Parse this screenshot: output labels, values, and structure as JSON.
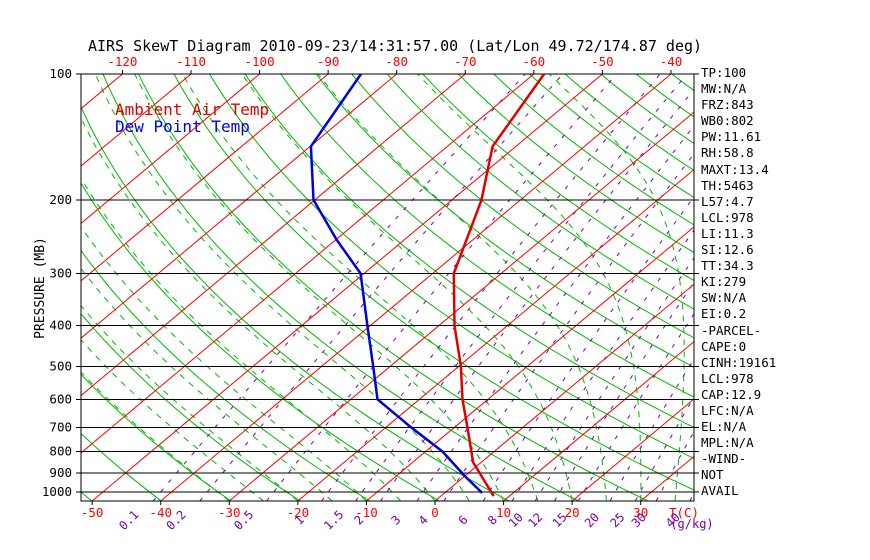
{
  "title": "AIRS SkewT Diagram 2010-09-23/14:31:57.00 (Lat/Lon 49.72/174.87 deg)",
  "legend": {
    "ambient": "Ambient Air Temp",
    "dewpoint": "Dew Point Temp"
  },
  "axes": {
    "pressure_label": "PRESSURE (MB)",
    "temp_unit": "T(C)",
    "mixing_ratio_unit": "(g/kg)"
  },
  "stats": [
    "TP:100",
    "MW:N/A",
    "FRZ:843",
    "WB0:802",
    "PW:11.61",
    "RH:58.8",
    "MAXT:13.4",
    "TH:5463",
    "L57:4.7",
    "LCL:978",
    "LI:11.3",
    "SI:12.6",
    "TT:34.3",
    "KI:279",
    "SW:N/A",
    "EI:0.2",
    "-PARCEL-",
    "CAPE:0",
    "CINH:19161",
    "LCL:978",
    "CAP:12.9",
    "LFC:N/A",
    "EL:N/A",
    "MPL:N/A",
    "-WIND-",
    "NOT",
    "AVAIL"
  ],
  "colors": {
    "background": "#ffffff",
    "black": "#000000",
    "isotherm_red": "#ff0000",
    "adiabat_green": "#00b800",
    "mixing_purple": "#7700aa",
    "ambient_red": "#e10000",
    "dewpoint_blue": "#0000dd"
  },
  "chart_data": {
    "type": "line",
    "title": "AIRS SkewT Diagram 2010-09-23/14:31:57.00 (Lat/Lon 49.72/174.87 deg)",
    "x_axis": {
      "label": "T(C)",
      "bottom_ticks": [
        -50,
        -40,
        -30,
        -20,
        -10,
        0,
        10,
        20,
        30
      ],
      "top_ticks": [
        -120,
        -110,
        -100,
        -90,
        -80,
        -70,
        -60,
        -50,
        -40
      ],
      "skew": "isotherms slant up-right"
    },
    "y_axis": {
      "label": "PRESSURE (MB)",
      "scale": "log",
      "range": [
        100,
        1050
      ],
      "ticks": [
        100,
        200,
        300,
        400,
        500,
        600,
        700,
        800,
        900,
        1000
      ]
    },
    "grid_lines": {
      "isotherms_c": {
        "min": -120,
        "max": 40,
        "step": 10
      },
      "dry_adiabats_k": {
        "min": 220,
        "max": 470,
        "step": 10
      },
      "moist_adiabats_c": {
        "min": -30,
        "max": 40,
        "step": 5
      },
      "mixing_ratio_g_kg": [
        "0.1",
        "0.2",
        "0.5",
        "1",
        "1.5",
        "2",
        "3",
        "4",
        "6",
        "8",
        "10",
        "12",
        "15",
        "20",
        "25",
        "30",
        "40"
      ]
    },
    "series": [
      {
        "name": "Ambient Air Temp",
        "color": "#e10000",
        "points_pressure_mb_temp_c": [
          [
            100,
            -58.5
          ],
          [
            149,
            -53.4
          ],
          [
            200,
            -45.7
          ],
          [
            300,
            -36.9
          ],
          [
            400,
            -27.7
          ],
          [
            500,
            -19.7
          ],
          [
            600,
            -13.7
          ],
          [
            700,
            -8.1
          ],
          [
            848,
            -1.2
          ],
          [
            1022,
            7.7
          ]
        ]
      },
      {
        "name": "Dew Point Temp",
        "color": "#0000dd",
        "points_pressure_mb_temp_c": [
          [
            100,
            -85.2
          ],
          [
            149,
            -79.9
          ],
          [
            200,
            -70.2
          ],
          [
            249,
            -59.9
          ],
          [
            300,
            -50.5
          ],
          [
            400,
            -40.4
          ],
          [
            500,
            -32.5
          ],
          [
            600,
            -26.1
          ],
          [
            700,
            -16.3
          ],
          [
            800,
            -7.5
          ],
          [
            920,
            0.3
          ],
          [
            1005,
            5.5
          ]
        ]
      }
    ]
  }
}
